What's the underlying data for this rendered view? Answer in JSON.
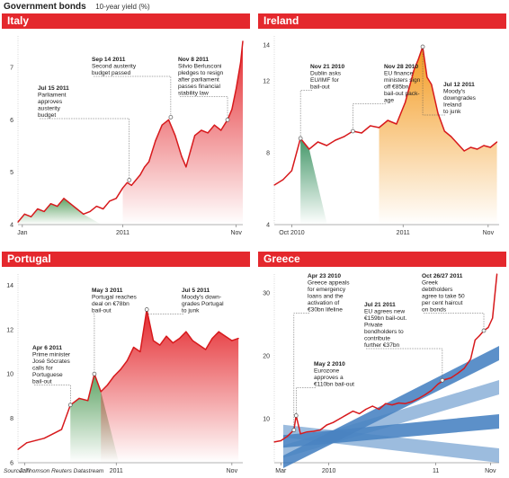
{
  "header": {
    "title": "Government bonds",
    "subtitle": "10-year yield (%)"
  },
  "source": "Source: Thomson Reuters Datastream",
  "colors": {
    "header_red": "#e4282d",
    "line_red": "#d7191c",
    "italy_fill": "#e4282d",
    "italy_green": "#4e9a55",
    "ireland_green": "#2e8b57",
    "ireland_orange": "#f39a1f",
    "portugal_red": "#e4282d",
    "portugal_green": "#3c8c3c",
    "greece_blue": "#2b6fb8"
  },
  "chart_data": [
    {
      "name": "Italy",
      "type": "line",
      "ylim": [
        4,
        7.6
      ],
      "yticks": [
        4,
        5,
        6,
        7
      ],
      "xlim": [
        0,
        10.3
      ],
      "xticks": [
        {
          "x": 0.2,
          "label": "Jan"
        },
        {
          "x": 4.8,
          "label": "2011"
        },
        {
          "x": 10.0,
          "label": "Nov"
        }
      ],
      "x": [
        0,
        0.3,
        0.6,
        0.9,
        1.2,
        1.5,
        1.8,
        2.1,
        2.4,
        2.7,
        3.0,
        3.3,
        3.6,
        3.9,
        4.2,
        4.5,
        4.8,
        5.0,
        5.2,
        5.4,
        5.6,
        5.8,
        6.0,
        6.3,
        6.6,
        6.9,
        7.2,
        7.5,
        7.7,
        7.9,
        8.1,
        8.4,
        8.7,
        9.0,
        9.3,
        9.6,
        9.8,
        10.0,
        10.2,
        10.3
      ],
      "values": [
        4.05,
        4.2,
        4.15,
        4.3,
        4.25,
        4.4,
        4.35,
        4.5,
        4.4,
        4.3,
        4.2,
        4.25,
        4.35,
        4.3,
        4.45,
        4.5,
        4.7,
        4.8,
        4.75,
        4.85,
        4.95,
        5.1,
        5.2,
        5.6,
        5.9,
        6.0,
        5.7,
        5.3,
        5.1,
        5.4,
        5.7,
        5.8,
        5.75,
        5.9,
        5.8,
        6.0,
        6.2,
        6.6,
        7.1,
        7.5
      ],
      "annotations": [
        {
          "x": 5.1,
          "y": 4.85,
          "date": "Jul 15 2011",
          "text": [
            "Parliament",
            "approves",
            "austerity",
            "budget"
          ]
        },
        {
          "x": 7.0,
          "y": 6.05,
          "date": "Sep 14 2011",
          "text": [
            "Second austerity",
            "budget passed"
          ]
        },
        {
          "x": 9.6,
          "y": 6.0,
          "date": "Nov 8 2011",
          "text": [
            "Silvio Berlusconi",
            "pledges to resign",
            "after parliament",
            "passes financial",
            "stability law"
          ]
        }
      ]
    },
    {
      "name": "Ireland",
      "type": "line",
      "ylim": [
        4,
        14.5
      ],
      "yticks": [
        4,
        8,
        12,
        14
      ],
      "xlim": [
        0,
        10.3
      ],
      "xticks": [
        {
          "x": 0.8,
          "label": "Oct 2010"
        },
        {
          "x": 5.9,
          "label": "2011"
        },
        {
          "x": 9.8,
          "label": "Nov"
        }
      ],
      "x": [
        0,
        0.4,
        0.8,
        1.2,
        1.6,
        2.0,
        2.4,
        2.8,
        3.2,
        3.6,
        4.0,
        4.4,
        4.8,
        5.2,
        5.6,
        6.0,
        6.2,
        6.4,
        6.6,
        6.8,
        7.0,
        7.2,
        7.5,
        7.8,
        8.1,
        8.4,
        8.7,
        9.0,
        9.3,
        9.6,
        9.9,
        10.2
      ],
      "values": [
        6.2,
        6.5,
        7.0,
        8.8,
        8.2,
        8.6,
        8.4,
        8.7,
        8.9,
        9.2,
        9.1,
        9.5,
        9.4,
        9.8,
        9.6,
        10.8,
        11.7,
        12.6,
        13.2,
        13.9,
        12.2,
        11.8,
        10.2,
        9.2,
        8.9,
        8.5,
        8.1,
        8.3,
        8.2,
        8.4,
        8.3,
        8.6
      ],
      "annotations": [
        {
          "x": 1.2,
          "y": 8.8,
          "date": "Nov 21 2010",
          "text": [
            "Dublin asks",
            "EU/IMF for",
            "bail-out"
          ]
        },
        {
          "x": 3.6,
          "y": 9.2,
          "date": "Nov 28 2010",
          "text": [
            "EU finance",
            "ministers sign",
            "off €85bn",
            "bail-out pack-",
            "age"
          ]
        },
        {
          "x": 6.8,
          "y": 13.9,
          "date": "Jul 12 2011",
          "text": [
            "Moody's",
            "downgrades",
            "Ireland",
            "to junk"
          ]
        }
      ]
    },
    {
      "name": "Portugal",
      "type": "line",
      "ylim": [
        6,
        14.5
      ],
      "yticks": [
        6,
        8,
        10,
        12,
        14
      ],
      "xlim": [
        0,
        10.3
      ],
      "xticks": [
        {
          "x": 0.3,
          "label": "Jan"
        },
        {
          "x": 4.5,
          "label": "2011"
        },
        {
          "x": 9.8,
          "label": "Nov"
        }
      ],
      "x": [
        0,
        0.4,
        0.8,
        1.2,
        1.6,
        2.0,
        2.4,
        2.8,
        3.2,
        3.5,
        3.8,
        4.1,
        4.4,
        4.7,
        5.0,
        5.3,
        5.6,
        5.9,
        6.2,
        6.5,
        6.8,
        7.1,
        7.4,
        7.7,
        8.0,
        8.3,
        8.6,
        8.9,
        9.2,
        9.5,
        9.8,
        10.1
      ],
      "values": [
        6.6,
        6.9,
        7.0,
        7.1,
        7.3,
        7.5,
        8.6,
        8.9,
        8.8,
        10.0,
        9.2,
        9.5,
        9.9,
        10.2,
        10.6,
        11.2,
        11.0,
        12.9,
        11.5,
        11.3,
        11.7,
        11.4,
        11.6,
        11.9,
        11.5,
        11.3,
        11.1,
        11.6,
        11.9,
        11.7,
        11.5,
        11.6
      ],
      "annotations": [
        {
          "x": 2.4,
          "y": 8.6,
          "date": "Apr 6 2011",
          "text": [
            "Prime minister",
            "José Sócrates",
            "calls for",
            "Portuguese",
            "bail-out"
          ]
        },
        {
          "x": 3.5,
          "y": 10.0,
          "date": "May 3 2011",
          "text": [
            "Portugal reaches",
            "deal on €78bn",
            "bail-out"
          ]
        },
        {
          "x": 5.9,
          "y": 12.9,
          "date": "Jul 5 2011",
          "text": [
            "Moody's down-",
            "grades Portugal",
            "to junk"
          ]
        }
      ]
    },
    {
      "name": "Greece",
      "type": "line",
      "ylim": [
        3,
        33
      ],
      "yticks": [
        10,
        20,
        30
      ],
      "xlim": [
        0,
        10.3
      ],
      "xticks": [
        {
          "x": 0.3,
          "label": "Mar"
        },
        {
          "x": 2.5,
          "label": "2010"
        },
        {
          "x": 7.4,
          "label": "11"
        },
        {
          "x": 9.9,
          "label": "Nov"
        }
      ],
      "x": [
        0,
        0.3,
        0.6,
        0.9,
        1.0,
        1.2,
        1.5,
        1.8,
        2.1,
        2.4,
        2.7,
        3.0,
        3.3,
        3.6,
        3.9,
        4.2,
        4.5,
        4.8,
        5.1,
        5.4,
        5.7,
        6.0,
        6.3,
        6.6,
        6.9,
        7.2,
        7.5,
        7.8,
        8.1,
        8.4,
        8.7,
        9.0,
        9.2,
        9.4,
        9.6,
        9.8,
        10.0,
        10.2
      ],
      "values": [
        6.3,
        6.5,
        7.2,
        8.2,
        10.5,
        7.6,
        7.9,
        8.0,
        8.2,
        9.0,
        9.4,
        10.0,
        10.6,
        11.2,
        10.8,
        11.5,
        12.0,
        11.5,
        12.4,
        12.2,
        12.5,
        12.4,
        12.7,
        13.2,
        13.8,
        14.5,
        15.5,
        16.2,
        16.5,
        17.2,
        18.0,
        19.5,
        22.5,
        23.2,
        24.0,
        24.5,
        26.0,
        33.0
      ],
      "annotations": [
        {
          "x": 0.9,
          "y": 8.2,
          "date": "Apr 23 2010",
          "text": [
            "Greece appeals",
            "for emergency",
            "loans and the",
            "activation of",
            "€30bn lifeline"
          ]
        },
        {
          "x": 1.0,
          "y": 10.5,
          "date": "May 2 2010",
          "text": [
            "Eurozone",
            "approves a",
            "€110bn bail-out"
          ]
        },
        {
          "x": 7.7,
          "y": 16.1,
          "date": "Jul 21 2011",
          "text": [
            "EU agrees new",
            "€159bn bail-out.",
            "Private",
            "bondholders to",
            "contribute",
            "further €37bn"
          ]
        },
        {
          "x": 9.6,
          "y": 24.0,
          "date": "Oct 26/27 2011",
          "text": [
            "Greek",
            "debtholders",
            "agree to take 50",
            "per cent haircut",
            "on bonds"
          ]
        }
      ]
    }
  ]
}
